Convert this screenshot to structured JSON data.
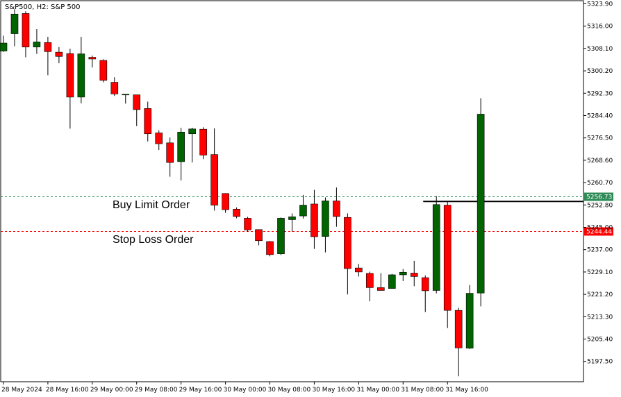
{
  "chart_data": {
    "type": "candlestick",
    "title": "S&P500, H2:  S&P 500",
    "ylim": [
      5191.5,
      5325.5
    ],
    "y_ticks": [
      "5323.90",
      "5316.00",
      "5308.10",
      "5300.20",
      "5292.30",
      "5284.40",
      "5276.50",
      "5268.60",
      "5260.70",
      "5252.80",
      "5245.00",
      "5237.00",
      "5229.10",
      "5221.20",
      "5213.30",
      "5205.40",
      "5197.50"
    ],
    "x_ticks": [
      {
        "index": 0,
        "label": "28 May 2024"
      },
      {
        "index": 4,
        "label": "28 May 16:00"
      },
      {
        "index": 8,
        "label": "29 May 00:00"
      },
      {
        "index": 12,
        "label": "29 May 08:00"
      },
      {
        "index": 16,
        "label": "29 May 16:00"
      },
      {
        "index": 20,
        "label": "30 May 00:00"
      },
      {
        "index": 24,
        "label": "30 May 08:00"
      },
      {
        "index": 28,
        "label": "30 May 16:00"
      },
      {
        "index": 32,
        "label": "31 May 00:00"
      },
      {
        "index": 36,
        "label": "31 May 08:00"
      },
      {
        "index": 40,
        "label": "31 May 16:00"
      }
    ],
    "candles": [
      {
        "o": 5307.8,
        "h": 5313.2,
        "l": 5307.5,
        "c": 5310.6
      },
      {
        "o": 5313.9,
        "h": 5322.5,
        "l": 5309.5,
        "c": 5320.8
      },
      {
        "o": 5321.0,
        "h": 5321.8,
        "l": 5305.6,
        "c": 5309.2
      },
      {
        "o": 5309.2,
        "h": 5315.5,
        "l": 5306.8,
        "c": 5311.0
      },
      {
        "o": 5310.8,
        "h": 5312.8,
        "l": 5299.3,
        "c": 5307.6
      },
      {
        "o": 5307.4,
        "h": 5309.2,
        "l": 5303.5,
        "c": 5305.9
      },
      {
        "o": 5306.9,
        "h": 5308.6,
        "l": 5280.5,
        "c": 5291.6
      },
      {
        "o": 5291.6,
        "h": 5312.8,
        "l": 5289.4,
        "c": 5306.8
      },
      {
        "o": 5305.6,
        "h": 5306.2,
        "l": 5302.0,
        "c": 5305.0
      },
      {
        "o": 5304.5,
        "h": 5304.9,
        "l": 5296.8,
        "c": 5297.5
      },
      {
        "o": 5296.8,
        "h": 5298.6,
        "l": 5292.0,
        "c": 5292.7
      },
      {
        "o": 5292.6,
        "h": 5292.6,
        "l": 5289.3,
        "c": 5292.6
      },
      {
        "o": 5292.4,
        "h": 5292.4,
        "l": 5281.4,
        "c": 5287.2
      },
      {
        "o": 5287.6,
        "h": 5290.0,
        "l": 5276.0,
        "c": 5278.7
      },
      {
        "o": 5279.0,
        "h": 5279.9,
        "l": 5273.0,
        "c": 5275.2
      },
      {
        "o": 5275.5,
        "h": 5277.4,
        "l": 5263.6,
        "c": 5268.6
      },
      {
        "o": 5268.9,
        "h": 5280.8,
        "l": 5262.3,
        "c": 5279.3
      },
      {
        "o": 5278.7,
        "h": 5280.8,
        "l": 5268.6,
        "c": 5280.4
      },
      {
        "o": 5280.3,
        "h": 5281.0,
        "l": 5269.8,
        "c": 5271.2
      },
      {
        "o": 5271.4,
        "h": 5280.6,
        "l": 5251.7,
        "c": 5253.6
      },
      {
        "o": 5257.7,
        "h": 5257.8,
        "l": 5250.9,
        "c": 5252.0
      },
      {
        "o": 5252.2,
        "h": 5252.8,
        "l": 5249.0,
        "c": 5249.6
      },
      {
        "o": 5249.0,
        "h": 5249.5,
        "l": 5244.3,
        "c": 5244.9
      },
      {
        "o": 5245.0,
        "h": 5245.1,
        "l": 5239.5,
        "c": 5241.1
      },
      {
        "o": 5240.8,
        "h": 5241.0,
        "l": 5235.6,
        "c": 5236.2
      },
      {
        "o": 5236.5,
        "h": 5249.3,
        "l": 5236.0,
        "c": 5249.0
      },
      {
        "o": 5248.5,
        "h": 5250.7,
        "l": 5244.3,
        "c": 5249.5
      },
      {
        "o": 5249.8,
        "h": 5257.2,
        "l": 5248.9,
        "c": 5253.6
      },
      {
        "o": 5254.0,
        "h": 5259.0,
        "l": 5238.2,
        "c": 5242.5
      },
      {
        "o": 5242.6,
        "h": 5256.3,
        "l": 5237.0,
        "c": 5255.1
      },
      {
        "o": 5255.1,
        "h": 5259.8,
        "l": 5246.0,
        "c": 5249.6
      },
      {
        "o": 5249.3,
        "h": 5250.7,
        "l": 5222.2,
        "c": 5231.3
      },
      {
        "o": 5231.5,
        "h": 5232.9,
        "l": 5228.5,
        "c": 5230.1
      },
      {
        "o": 5229.6,
        "h": 5230.2,
        "l": 5219.8,
        "c": 5224.6
      },
      {
        "o": 5224.6,
        "h": 5229.7,
        "l": 5223.8,
        "c": 5223.6
      },
      {
        "o": 5224.3,
        "h": 5229.4,
        "l": 5224.3,
        "c": 5229.1
      },
      {
        "o": 5229.1,
        "h": 5231.1,
        "l": 5226.9,
        "c": 5230.0
      },
      {
        "o": 5229.7,
        "h": 5234.0,
        "l": 5225.1,
        "c": 5228.5
      },
      {
        "o": 5228.1,
        "h": 5228.9,
        "l": 5216.0,
        "c": 5223.5
      },
      {
        "o": 5223.6,
        "h": 5256.8,
        "l": 5222.6,
        "c": 5253.8
      },
      {
        "o": 5253.6,
        "h": 5254.9,
        "l": 5210.4,
        "c": 5216.6
      },
      {
        "o": 5216.6,
        "h": 5217.5,
        "l": 5193.4,
        "c": 5203.4
      },
      {
        "o": 5203.3,
        "h": 5225.5,
        "l": 5203.0,
        "c": 5222.6
      },
      {
        "o": 5222.7,
        "h": 5291.2,
        "l": 5218.0,
        "c": 5285.6
      }
    ],
    "levels": [
      {
        "value": 5256.73,
        "label": "5256.73",
        "color": "#2e8b57"
      },
      {
        "value": 5244.44,
        "label": "5244.44",
        "color": "#ff0000"
      }
    ],
    "annotations": [
      {
        "text": "Buy Limit Order"
      },
      {
        "text": "Stop Loss Order"
      }
    ],
    "colors": {
      "up": "#006400",
      "down": "#ff0000",
      "wick": "#000000",
      "frame": "#000000"
    }
  }
}
